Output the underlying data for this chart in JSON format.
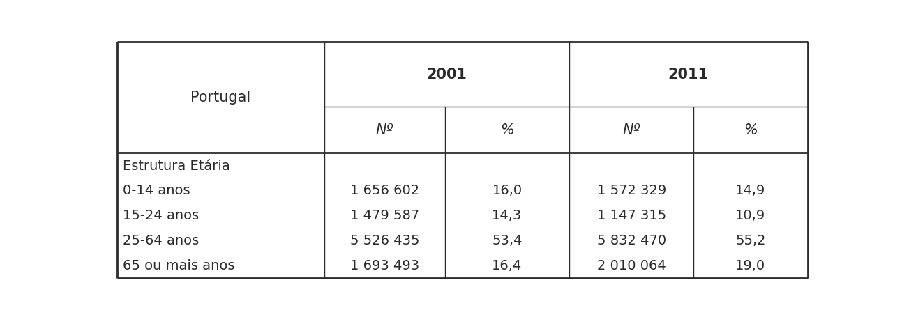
{
  "header_row1_labels": [
    "2001",
    "2011"
  ],
  "header_row2_labels": [
    "Nº",
    "%",
    "Nº",
    "%"
  ],
  "portugal_label": "Portugal",
  "rows": [
    [
      "Estrutura Etária",
      "",
      "",
      "",
      ""
    ],
    [
      "0-14 anos",
      "1 656 602",
      "16,0",
      "1 572 329",
      "14,9"
    ],
    [
      "15-24 anos",
      "1 479 587",
      "14,3",
      "1 147 315",
      "10,9"
    ],
    [
      "25-64 anos",
      "5 526 435",
      "53,4",
      "5 832 470",
      "55,2"
    ],
    [
      "65 ou mais anos",
      "1 693 493",
      "16,4",
      "2 010 064",
      "19,0"
    ]
  ],
  "background_color": "#ffffff",
  "border_color": "#2b2b2b",
  "text_color": "#2b2b2b",
  "font_size": 14,
  "header_font_size": 15
}
